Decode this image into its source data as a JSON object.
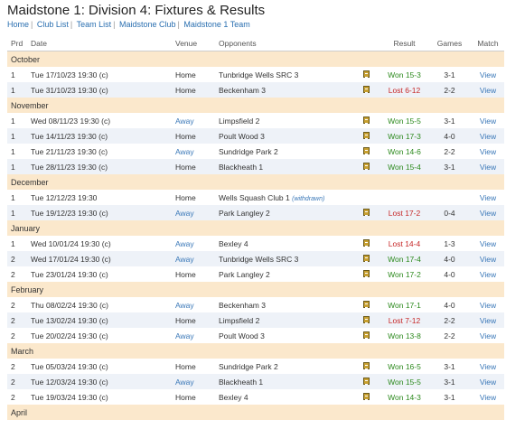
{
  "header": {
    "title": "Maidstone 1: Division 4: Fixtures & Results",
    "breadcrumbs": [
      "Home",
      "Club List",
      "Team List",
      "Maidstone Club",
      "Maidstone 1 Team"
    ]
  },
  "table": {
    "columns": [
      "Prd",
      "Date",
      "Venue",
      "Opponents",
      "Result",
      "Games",
      "Match"
    ],
    "rows": [
      {
        "type": "month",
        "label": "October"
      },
      {
        "prd": "1",
        "date": "Tue 17/10/23 19:30 (c)",
        "venue": "Home",
        "opponent": "Tunbridge Wells SRC 3",
        "sheet": true,
        "result": "Won 15-3",
        "outcome": "won",
        "games": "3-1",
        "match": "View"
      },
      {
        "prd": "1",
        "date": "Tue 31/10/23 19:30 (c)",
        "venue": "Home",
        "opponent": "Beckenham 3",
        "sheet": true,
        "result": "Lost 6-12",
        "outcome": "lost",
        "games": "2-2",
        "match": "View"
      },
      {
        "type": "month",
        "label": "November"
      },
      {
        "prd": "1",
        "date": "Wed 08/11/23 19:30 (c)",
        "venue": "Away",
        "opponent": "Limpsfield 2",
        "sheet": true,
        "result": "Won 15-5",
        "outcome": "won",
        "games": "3-1",
        "match": "View"
      },
      {
        "prd": "1",
        "date": "Tue 14/11/23 19:30 (c)",
        "venue": "Home",
        "opponent": "Poult Wood 3",
        "sheet": true,
        "result": "Won 17-3",
        "outcome": "won",
        "games": "4-0",
        "match": "View"
      },
      {
        "prd": "1",
        "date": "Tue 21/11/23 19:30 (c)",
        "venue": "Away",
        "opponent": "Sundridge Park 2",
        "sheet": true,
        "result": "Won 14-6",
        "outcome": "won",
        "games": "2-2",
        "match": "View"
      },
      {
        "prd": "1",
        "date": "Tue 28/11/23 19:30 (c)",
        "venue": "Home",
        "opponent": "Blackheath 1",
        "sheet": true,
        "result": "Won 15-4",
        "outcome": "won",
        "games": "3-1",
        "match": "View"
      },
      {
        "type": "month",
        "label": "December"
      },
      {
        "prd": "1",
        "date": "Tue 12/12/23 19:30",
        "venue": "Home",
        "opponent": "Wells Squash Club 1",
        "withdrawn": "(withdrawn)",
        "sheet": false,
        "result": "",
        "outcome": "",
        "games": "",
        "match": "View"
      },
      {
        "prd": "1",
        "date": "Tue 19/12/23 19:30 (c)",
        "venue": "Away",
        "opponent": "Park Langley 2",
        "sheet": true,
        "result": "Lost 17-2",
        "outcome": "lost",
        "games": "0-4",
        "match": "View"
      },
      {
        "type": "month",
        "label": "January"
      },
      {
        "prd": "1",
        "date": "Wed 10/01/24 19:30 (c)",
        "venue": "Away",
        "opponent": "Bexley 4",
        "sheet": true,
        "result": "Lost 14-4",
        "outcome": "lost",
        "games": "1-3",
        "match": "View"
      },
      {
        "prd": "2",
        "date": "Wed 17/01/24 19:30 (c)",
        "venue": "Away",
        "opponent": "Tunbridge Wells SRC 3",
        "sheet": true,
        "result": "Won 17-4",
        "outcome": "won",
        "games": "4-0",
        "match": "View"
      },
      {
        "prd": "2",
        "date": "Tue 23/01/24 19:30 (c)",
        "venue": "Home",
        "opponent": "Park Langley 2",
        "sheet": true,
        "result": "Won 17-2",
        "outcome": "won",
        "games": "4-0",
        "match": "View"
      },
      {
        "type": "month",
        "label": "February"
      },
      {
        "prd": "2",
        "date": "Thu 08/02/24 19:30 (c)",
        "venue": "Away",
        "opponent": "Beckenham 3",
        "sheet": true,
        "result": "Won 17-1",
        "outcome": "won",
        "games": "4-0",
        "match": "View"
      },
      {
        "prd": "2",
        "date": "Tue 13/02/24 19:30 (c)",
        "venue": "Home",
        "opponent": "Limpsfield 2",
        "sheet": true,
        "result": "Lost 7-12",
        "outcome": "lost",
        "games": "2-2",
        "match": "View"
      },
      {
        "prd": "2",
        "date": "Tue 20/02/24 19:30 (c)",
        "venue": "Away",
        "opponent": "Poult Wood 3",
        "sheet": true,
        "result": "Won 13-8",
        "outcome": "won",
        "games": "2-2",
        "match": "View"
      },
      {
        "type": "month",
        "label": "March"
      },
      {
        "prd": "2",
        "date": "Tue 05/03/24 19:30 (c)",
        "venue": "Home",
        "opponent": "Sundridge Park 2",
        "sheet": true,
        "result": "Won 16-5",
        "outcome": "won",
        "games": "3-1",
        "match": "View"
      },
      {
        "prd": "2",
        "date": "Tue 12/03/24 19:30 (c)",
        "venue": "Away",
        "opponent": "Blackheath 1",
        "sheet": true,
        "result": "Won 15-5",
        "outcome": "won",
        "games": "3-1",
        "match": "View"
      },
      {
        "prd": "2",
        "date": "Tue 19/03/24 19:30 (c)",
        "venue": "Home",
        "opponent": "Bexley 4",
        "sheet": true,
        "result": "Won 14-3",
        "outcome": "won",
        "games": "3-1",
        "match": "View"
      },
      {
        "type": "month",
        "label": "April"
      }
    ]
  },
  "colors": {
    "month_band": "#fbe8cc",
    "alt_row": "#eef2f8",
    "won": "#2d8a1e",
    "lost": "#c62828",
    "link": "#3a78b8"
  },
  "icons": {
    "scoresheet": "scoresheet-icon"
  }
}
